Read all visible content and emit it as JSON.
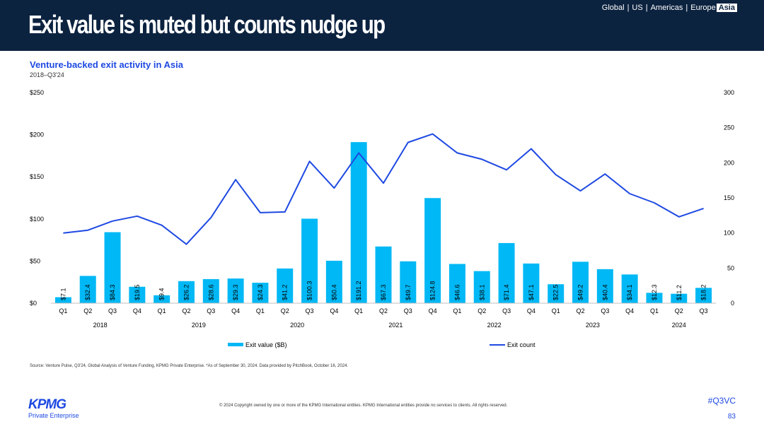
{
  "header": {
    "title": "Exit value is muted but counts nudge up",
    "regions": [
      "Global",
      "US",
      "Americas",
      "Europe",
      "Asia"
    ],
    "active_region": "Asia"
  },
  "chart_data": {
    "type": "bar+line",
    "title": "Venture-backed exit activity in Asia",
    "subtitle": "2018–Q3'24",
    "quarters": [
      "Q1",
      "Q2",
      "Q3",
      "Q4",
      "Q1",
      "Q2",
      "Q3",
      "Q4",
      "Q1",
      "Q2",
      "Q3",
      "Q4",
      "Q1",
      "Q2",
      "Q3",
      "Q4",
      "Q1",
      "Q2",
      "Q3",
      "Q4",
      "Q1",
      "Q2",
      "Q3",
      "Q4",
      "Q1",
      "Q2",
      "Q3"
    ],
    "years": [
      {
        "label": "2018",
        "start": 0,
        "count": 4
      },
      {
        "label": "2019",
        "start": 4,
        "count": 4
      },
      {
        "label": "2020",
        "start": 8,
        "count": 4
      },
      {
        "label": "2021",
        "start": 12,
        "count": 4
      },
      {
        "label": "2022",
        "start": 16,
        "count": 4
      },
      {
        "label": "2023",
        "start": 20,
        "count": 4
      },
      {
        "label": "2024",
        "start": 24,
        "count": 3
      }
    ],
    "series": [
      {
        "name": "Exit value ($B)",
        "type": "bar",
        "axis": "left",
        "color": "#00b8f5",
        "values": [
          7.1,
          32.4,
          84.3,
          19.5,
          9.4,
          26.2,
          28.6,
          29.3,
          24.3,
          41.2,
          100.3,
          50.4,
          191.2,
          67.3,
          49.7,
          124.8,
          46.6,
          38.1,
          71.4,
          47.1,
          22.5,
          49.2,
          40.4,
          34.1,
          12.3,
          11.2,
          18.2
        ],
        "labels": [
          "$7.1",
          "$32.4",
          "$84.3",
          "$19.5",
          "$9.4",
          "$26.2",
          "$28.6",
          "$29.3",
          "$24.3",
          "$41.2",
          "$100.3",
          "$50.4",
          "$191.2",
          "$67.3",
          "$49.7",
          "$124.8",
          "$46.6",
          "$38.1",
          "$71.4",
          "$47.1",
          "$22.5",
          "$49.2",
          "$40.4",
          "$34.1",
          "$12.3",
          "$11.2",
          "$18.2"
        ]
      },
      {
        "name": "Exit count",
        "type": "line",
        "axis": "right",
        "color": "#1e49e2",
        "values": [
          100,
          104,
          117,
          124,
          111,
          84,
          122,
          176,
          129,
          130,
          202,
          164,
          214,
          171,
          229,
          241,
          214,
          205,
          190,
          220,
          183,
          160,
          184,
          156,
          143,
          123,
          135
        ]
      }
    ],
    "left_axis": {
      "min": 0,
      "max": 250,
      "ticks": [
        0,
        50,
        100,
        150,
        200,
        250
      ],
      "tick_labels": [
        "$0",
        "$50",
        "$100",
        "$150",
        "$200",
        "$250"
      ]
    },
    "right_axis": {
      "min": 0,
      "max": 300,
      "ticks": [
        0,
        50,
        100,
        150,
        200,
        250,
        300
      ],
      "tick_labels": [
        "0",
        "50",
        "100",
        "150",
        "200",
        "250",
        "300"
      ]
    },
    "legend": {
      "placement": "bottom"
    }
  },
  "footer": {
    "source": "Source: Venture Pulse, Q3'24, Global Analysis of Venture Funding, KPMG Private Enterprise. *As of September 30, 2024. Data provided by PitchBook, October 16, 2024.",
    "copyright": "© 2024 Copyright owned by one or more of the KPMG International entities. KPMG International entities provide no services to clients. All rights reserved.",
    "logo_text": "KPMG",
    "logo_sub": "Private Enterprise",
    "hashtag": "#Q3VC",
    "page": "83"
  }
}
